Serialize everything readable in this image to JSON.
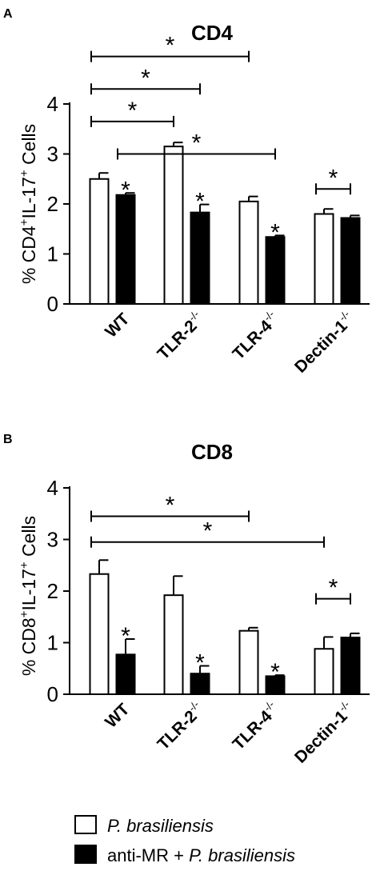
{
  "chart_data": [
    {
      "type": "bar",
      "panel": "A",
      "title": "CD4",
      "ylabel_parts": [
        "% CD4",
        "+",
        "IL-17",
        "+",
        " Cells"
      ],
      "ylim": [
        0,
        4
      ],
      "yticks": [
        "0",
        "1",
        "2",
        "3",
        "4"
      ],
      "categories": [
        {
          "label": "WT",
          "sup": ""
        },
        {
          "label": "TLR-2",
          "sup": "-/-"
        },
        {
          "label": "TLR-4",
          "sup": "-/-"
        },
        {
          "label": "Dectin-1",
          "sup": "-/-"
        }
      ],
      "series": [
        {
          "name": "P. brasiliensis",
          "color": "#ffffff",
          "values": [
            2.5,
            3.15,
            2.05,
            1.8
          ],
          "errors": [
            0.12,
            0.08,
            0.1,
            0.1
          ]
        },
        {
          "name": "anti-MR + P. brasiliensis",
          "color": "#000000",
          "values": [
            2.18,
            1.83,
            1.34,
            1.72
          ],
          "errors": [
            0.04,
            0.16,
            0.03,
            0.05
          ]
        }
      ],
      "bar_stars": [
        "*",
        "*",
        "*"
      ],
      "bar_star_targets": [
        [
          1,
          0
        ],
        [
          1,
          1
        ],
        [
          1,
          2
        ]
      ],
      "brackets": [
        {
          "from": [
            0,
            0
          ],
          "to": [
            2,
            0
          ],
          "y": 4.95,
          "label": "*"
        },
        {
          "from": [
            0,
            0
          ],
          "to": [
            1,
            1
          ],
          "y": 4.3,
          "label": "*"
        },
        {
          "from": [
            0,
            0
          ],
          "to": [
            1,
            0
          ],
          "y": 3.65,
          "label": "*"
        },
        {
          "from": [
            0,
            1
          ],
          "to": [
            2,
            1
          ],
          "y": 3.0,
          "label": "*"
        },
        {
          "from": [
            3,
            0
          ],
          "to": [
            3,
            1
          ],
          "y": 2.3,
          "label": "*"
        }
      ]
    },
    {
      "type": "bar",
      "panel": "B",
      "title": "CD8",
      "ylabel_parts": [
        "% CD8",
        "+",
        "IL-17",
        "+",
        " Cells"
      ],
      "ylim": [
        0,
        4
      ],
      "yticks": [
        "0",
        "1",
        "2",
        "3",
        "4"
      ],
      "categories": [
        {
          "label": "WT",
          "sup": ""
        },
        {
          "label": "TLR-2",
          "sup": "-/-"
        },
        {
          "label": "TLR-4",
          "sup": "-/-"
        },
        {
          "label": "Dectin-1",
          "sup": "-/-"
        }
      ],
      "series": [
        {
          "name": "P. brasiliensis",
          "color": "#ffffff",
          "values": [
            2.33,
            1.92,
            1.23,
            0.88
          ],
          "errors": [
            0.27,
            0.37,
            0.06,
            0.23
          ]
        },
        {
          "name": "anti-MR + P. brasiliensis",
          "color": "#000000",
          "values": [
            0.77,
            0.4,
            0.35,
            1.1
          ],
          "errors": [
            0.3,
            0.15,
            0.02,
            0.08
          ]
        }
      ],
      "bar_stars": [
        "*",
        "*",
        "*"
      ],
      "bar_star_targets": [
        [
          1,
          0
        ],
        [
          1,
          1
        ],
        [
          1,
          2
        ]
      ],
      "brackets": [
        {
          "from": [
            0,
            0
          ],
          "to": [
            2,
            0
          ],
          "y": 3.45,
          "label": "*"
        },
        {
          "from": [
            0,
            0
          ],
          "to": [
            3,
            0
          ],
          "y": 2.95,
          "label": "*"
        },
        {
          "from": [
            3,
            0
          ],
          "to": [
            3,
            1
          ],
          "y": 1.85,
          "label": "*"
        }
      ]
    }
  ],
  "legend": [
    {
      "text": "P. brasiliensis",
      "prefix": "",
      "italic": "P. brasiliensis",
      "color": "#ffffff"
    },
    {
      "text": "anti-MR + P. brasiliensis",
      "prefix": "anti-MR + ",
      "italic": "P. brasiliensis",
      "color": "#000000"
    }
  ]
}
